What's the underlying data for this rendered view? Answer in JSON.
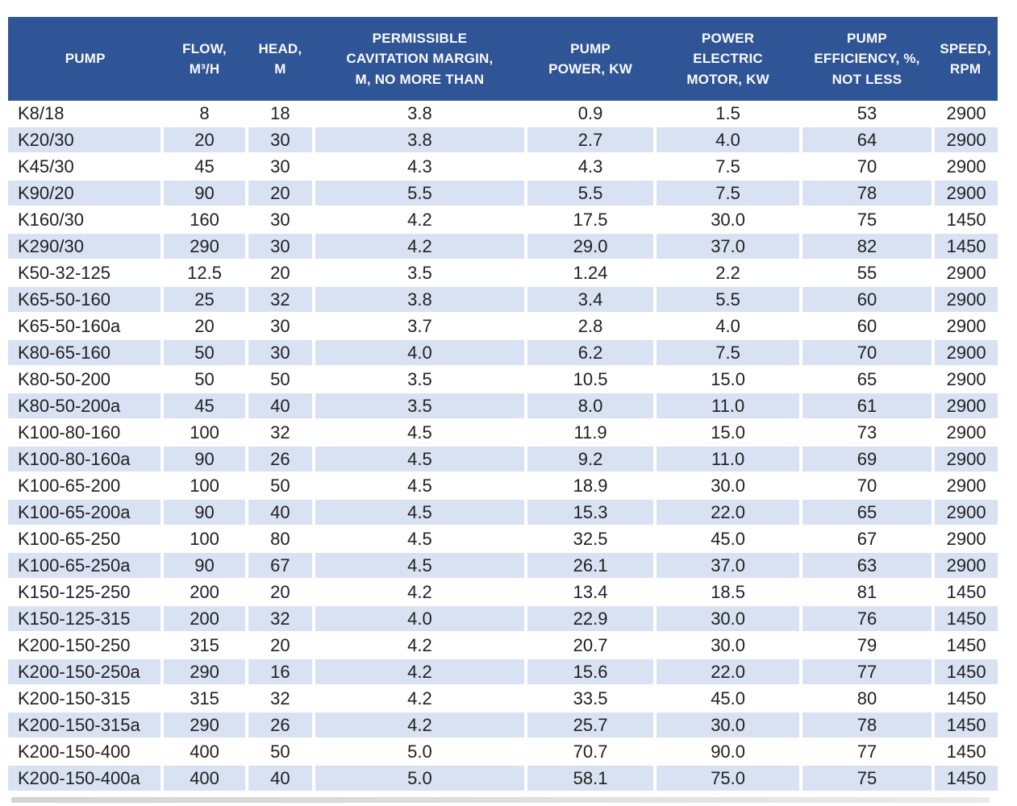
{
  "chart_data": {
    "type": "table",
    "columns": [
      {
        "key": "pump",
        "label": "PUMP"
      },
      {
        "key": "flow",
        "label": "FLOW,\nM³/H"
      },
      {
        "key": "head",
        "label": "HEAD,\nM"
      },
      {
        "key": "cavitation",
        "label": "PERMISSIBLE\nCAVITATION MARGIN,\nM, NO MORE THAN"
      },
      {
        "key": "power",
        "label": "PUMP\nPOWER, KW"
      },
      {
        "key": "motor",
        "label": "POWER\nELECTRIC\nMOTOR, KW"
      },
      {
        "key": "efficiency",
        "label": "PUMP\nEFFICIENCY, %,\nNOT LESS"
      },
      {
        "key": "speed",
        "label": "SPEED,\nRPM"
      }
    ],
    "rows": [
      [
        "K8/18",
        "8",
        "18",
        "3.8",
        "0.9",
        "1.5",
        "53",
        "2900"
      ],
      [
        "K20/30",
        "20",
        "30",
        "3.8",
        "2.7",
        "4.0",
        "64",
        "2900"
      ],
      [
        "K45/30",
        "45",
        "30",
        "4.3",
        "4.3",
        "7.5",
        "70",
        "2900"
      ],
      [
        "K90/20",
        "90",
        "20",
        "5.5",
        "5.5",
        "7.5",
        "78",
        "2900"
      ],
      [
        "K160/30",
        "160",
        "30",
        "4.2",
        "17.5",
        "30.0",
        "75",
        "1450"
      ],
      [
        "K290/30",
        "290",
        "30",
        "4.2",
        "29.0",
        "37.0",
        "82",
        "1450"
      ],
      [
        "K50-32-125",
        "12.5",
        "20",
        "3.5",
        "1.24",
        "2.2",
        "55",
        "2900"
      ],
      [
        "K65-50-160",
        "25",
        "32",
        "3.8",
        "3.4",
        "5.5",
        "60",
        "2900"
      ],
      [
        "K65-50-160a",
        "20",
        "30",
        "3.7",
        "2.8",
        "4.0",
        "60",
        "2900"
      ],
      [
        "K80-65-160",
        "50",
        "30",
        "4.0",
        "6.2",
        "7.5",
        "70",
        "2900"
      ],
      [
        "K80-50-200",
        "50",
        "50",
        "3.5",
        "10.5",
        "15.0",
        "65",
        "2900"
      ],
      [
        "K80-50-200a",
        "45",
        "40",
        "3.5",
        "8.0",
        "11.0",
        "61",
        "2900"
      ],
      [
        "K100-80-160",
        "100",
        "32",
        "4.5",
        "11.9",
        "15.0",
        "73",
        "2900"
      ],
      [
        "K100-80-160a",
        "90",
        "26",
        "4.5",
        "9.2",
        "11.0",
        "69",
        "2900"
      ],
      [
        "K100-65-200",
        "100",
        "50",
        "4.5",
        "18.9",
        "30.0",
        "70",
        "2900"
      ],
      [
        "K100-65-200a",
        "90",
        "40",
        "4.5",
        "15.3",
        "22.0",
        "65",
        "2900"
      ],
      [
        "K100-65-250",
        "100",
        "80",
        "4.5",
        "32.5",
        "45.0",
        "67",
        "2900"
      ],
      [
        "K100-65-250a",
        "90",
        "67",
        "4.5",
        "26.1",
        "37.0",
        "63",
        "2900"
      ],
      [
        "K150-125-250",
        "200",
        "20",
        "4.2",
        "13.4",
        "18.5",
        "81",
        "1450"
      ],
      [
        "K150-125-315",
        "200",
        "32",
        "4.0",
        "22.9",
        "30.0",
        "76",
        "1450"
      ],
      [
        "K200-150-250",
        "315",
        "20",
        "4.2",
        "20.7",
        "30.0",
        "79",
        "1450"
      ],
      [
        "K200-150-250a",
        "290",
        "16",
        "4.2",
        "15.6",
        "22.0",
        "77",
        "1450"
      ],
      [
        "K200-150-315",
        "315",
        "32",
        "4.2",
        "33.5",
        "45.0",
        "80",
        "1450"
      ],
      [
        "K200-150-315a",
        "290",
        "26",
        "4.2",
        "25.7",
        "30.0",
        "78",
        "1450"
      ],
      [
        "K200-150-400",
        "400",
        "50",
        "5.0",
        "70.7",
        "90.0",
        "77",
        "1450"
      ],
      [
        "K200-150-400a",
        "400",
        "40",
        "5.0",
        "58.1",
        "75.0",
        "75",
        "1450"
      ]
    ]
  },
  "colors": {
    "header_bg": "#2F5597",
    "header_text": "#FAFAFA",
    "stripe_bg": "#D9E2F3",
    "body_text": "#212121"
  }
}
